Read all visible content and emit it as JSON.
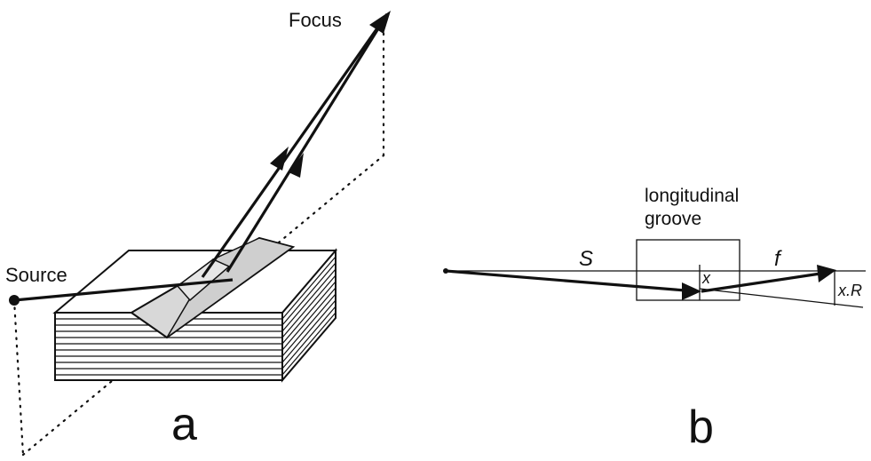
{
  "panel_a": {
    "focus_label": "Focus",
    "source_label": "Source",
    "panel_letter": "a"
  },
  "panel_b": {
    "groove_label_line1": "longitudinal",
    "groove_label_line2": "groove",
    "s_label": "S",
    "f_label": "f",
    "x_label": "x",
    "xr_label": "x.R",
    "panel_letter": "b"
  },
  "colors": {
    "line": "#111111",
    "groove_fill": "#d8d8d8",
    "background": "#ffffff"
  }
}
